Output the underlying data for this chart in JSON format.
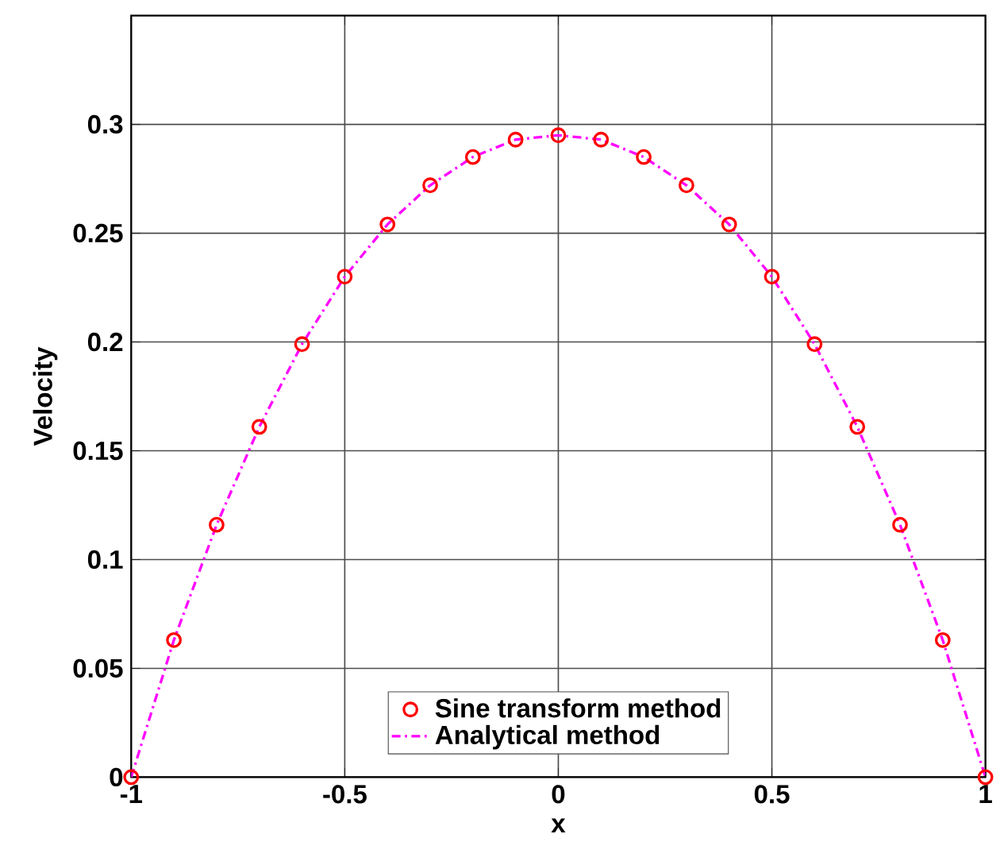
{
  "chart_data": {
    "type": "line",
    "xlabel": "x",
    "ylabel": "Velocity",
    "xlim": [
      -1,
      1
    ],
    "ylim": [
      0,
      0.35
    ],
    "xticks": [
      -1,
      -0.5,
      0,
      0.5,
      1
    ],
    "yticks": [
      0,
      0.05,
      0.1,
      0.15,
      0.2,
      0.25,
      0.3
    ],
    "grid": true,
    "legend": "bottom",
    "series": [
      {
        "name": "Sine transform method",
        "type": "scatter",
        "marker": "circle",
        "color": "#ff0000",
        "x": [
          -1,
          -0.9,
          -0.8,
          -0.7,
          -0.6,
          -0.5,
          -0.4,
          -0.3,
          -0.2,
          -0.1,
          0,
          0.1,
          0.2,
          0.3,
          0.4,
          0.5,
          0.6,
          0.7,
          0.8,
          0.9,
          1
        ],
        "values": [
          0,
          0.063,
          0.116,
          0.161,
          0.199,
          0.23,
          0.254,
          0.272,
          0.285,
          0.293,
          0.295,
          0.293,
          0.285,
          0.272,
          0.254,
          0.23,
          0.199,
          0.161,
          0.116,
          0.063,
          0
        ]
      },
      {
        "name": "Analytical method",
        "line_style": "dashdot",
        "color": "#ff00ff",
        "x": [
          -1,
          -0.9,
          -0.8,
          -0.7,
          -0.6,
          -0.5,
          -0.4,
          -0.3,
          -0.2,
          -0.1,
          0,
          0.1,
          0.2,
          0.3,
          0.4,
          0.5,
          0.6,
          0.7,
          0.8,
          0.9,
          1
        ],
        "values": [
          0,
          0.063,
          0.116,
          0.161,
          0.199,
          0.23,
          0.254,
          0.272,
          0.285,
          0.293,
          0.295,
          0.293,
          0.285,
          0.272,
          0.254,
          0.23,
          0.199,
          0.161,
          0.116,
          0.063,
          0
        ]
      }
    ]
  }
}
